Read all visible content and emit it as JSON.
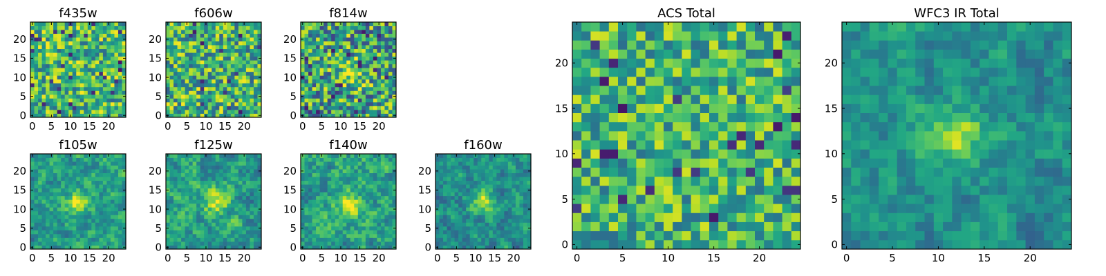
{
  "figure": {
    "type": "heatmap",
    "colormap": "viridis"
  },
  "chart_data": [
    {
      "type": "heatmap",
      "title": "f435w",
      "grid": 25,
      "xticks": [
        0,
        5,
        10,
        15,
        20
      ],
      "yticks": [
        0,
        5,
        10,
        15,
        20
      ],
      "xlim": [
        -0.5,
        24.5
      ],
      "ylim": [
        -0.5,
        24.5
      ],
      "seed": 11,
      "blob": null,
      "base": 0.68,
      "noise": 0.34,
      "smooth": false
    },
    {
      "type": "heatmap",
      "title": "f606w",
      "grid": 25,
      "xticks": [
        0,
        5,
        10,
        15,
        20
      ],
      "yticks": [
        0,
        5,
        10,
        15,
        20
      ],
      "xlim": [
        -0.5,
        24.5
      ],
      "ylim": [
        -0.5,
        24.5
      ],
      "seed": 23,
      "blob": null,
      "base": 0.66,
      "noise": 0.36,
      "smooth": false
    },
    {
      "type": "heatmap",
      "title": "f814w",
      "grid": 25,
      "xticks": [
        0,
        5,
        10,
        15,
        20
      ],
      "yticks": [
        0,
        5,
        10,
        15,
        20
      ],
      "xlim": [
        -0.5,
        24.5
      ],
      "ylim": [
        -0.5,
        24.5
      ],
      "seed": 37,
      "blob": [
        13,
        11
      ],
      "base": 0.6,
      "noise": 0.4,
      "smooth": false
    },
    {
      "type": "heatmap",
      "title": "f105w",
      "grid": 25,
      "xticks": [
        0,
        5,
        10,
        15,
        20
      ],
      "yticks": [
        0,
        5,
        10,
        15,
        20
      ],
      "xlim": [
        -0.5,
        24.5
      ],
      "ylim": [
        -0.5,
        24.5
      ],
      "seed": 41,
      "blob": [
        12,
        12
      ],
      "base": 0.55,
      "noise": 0.32,
      "smooth": true
    },
    {
      "type": "heatmap",
      "title": "f125w",
      "grid": 25,
      "xticks": [
        0,
        5,
        10,
        15,
        20
      ],
      "yticks": [
        0,
        5,
        10,
        15,
        20
      ],
      "xlim": [
        -0.5,
        24.5
      ],
      "ylim": [
        -0.5,
        24.5
      ],
      "seed": 53,
      "blob": [
        13,
        12
      ],
      "base": 0.56,
      "noise": 0.34,
      "smooth": true
    },
    {
      "type": "heatmap",
      "title": "f140w",
      "grid": 25,
      "xticks": [
        0,
        5,
        10,
        15,
        20
      ],
      "yticks": [
        0,
        5,
        10,
        15,
        20
      ],
      "xlim": [
        -0.5,
        24.5
      ],
      "ylim": [
        -0.5,
        24.5
      ],
      "seed": 67,
      "blob": [
        12,
        11
      ],
      "base": 0.58,
      "noise": 0.34,
      "smooth": true
    },
    {
      "type": "heatmap",
      "title": "f160w",
      "grid": 25,
      "xticks": [
        0,
        5,
        10,
        15,
        20
      ],
      "yticks": [
        0,
        5,
        10,
        15,
        20
      ],
      "xlim": [
        -0.5,
        24.5
      ],
      "ylim": [
        -0.5,
        24.5
      ],
      "seed": 79,
      "blob": [
        12,
        12
      ],
      "base": 0.5,
      "noise": 0.3,
      "smooth": true
    },
    {
      "type": "heatmap",
      "title": "ACS Total",
      "grid": 25,
      "xticks": [
        0,
        5,
        10,
        15,
        20
      ],
      "yticks": [
        0,
        5,
        10,
        15,
        20
      ],
      "xlim": [
        -0.5,
        24.5
      ],
      "ylim": [
        -0.5,
        24.5
      ],
      "seed": 97,
      "blob": null,
      "base": 0.66,
      "noise": 0.3,
      "smooth": false
    },
    {
      "type": "heatmap",
      "title": "WFC3 IR Total",
      "grid": 25,
      "xticks": [
        0,
        5,
        10,
        15,
        20
      ],
      "yticks": [
        0,
        5,
        10,
        15,
        20
      ],
      "xlim": [
        -0.5,
        24.5
      ],
      "ylim": [
        -0.5,
        24.5
      ],
      "seed": 131,
      "blob": [
        12,
        12
      ],
      "base": 0.5,
      "noise": 0.26,
      "smooth": true
    }
  ]
}
